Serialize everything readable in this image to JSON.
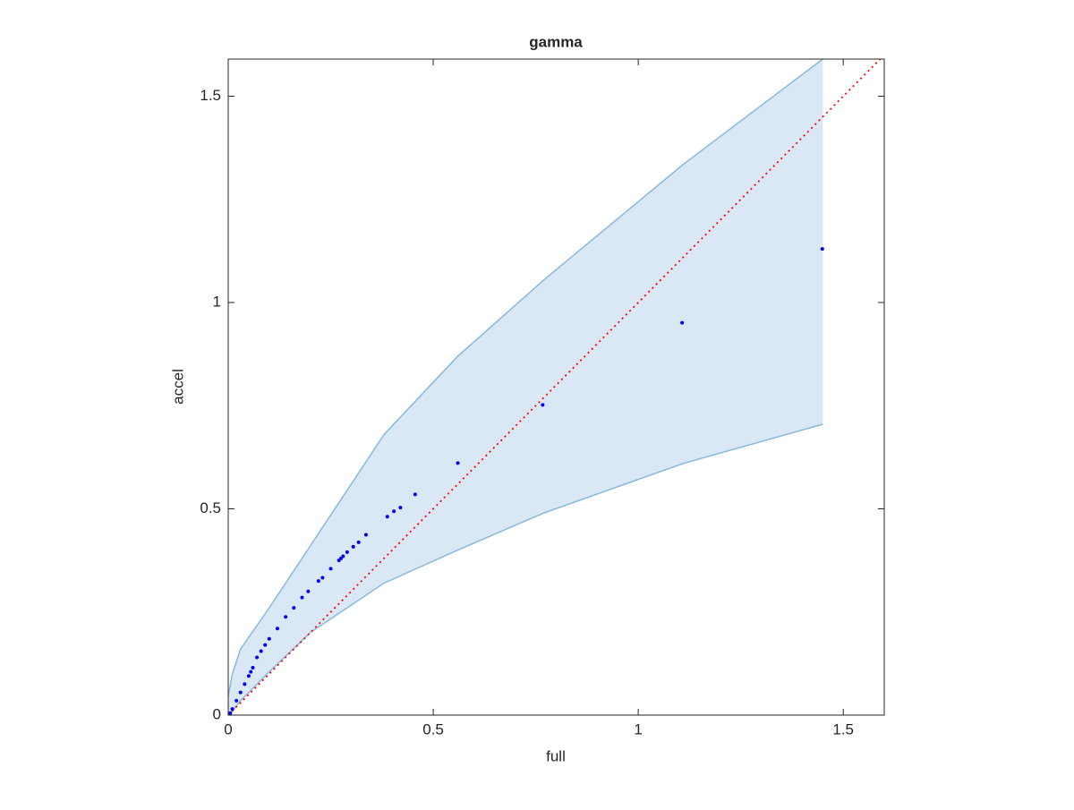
{
  "chart_data": {
    "type": "scatter",
    "title": "gamma",
    "xlabel": "full",
    "ylabel": "accel",
    "xlim": [
      0,
      1.6
    ],
    "ylim": [
      0,
      1.59
    ],
    "xticks": [
      0,
      0.5,
      1,
      1.5
    ],
    "yticks": [
      0,
      0.5,
      1,
      1.5
    ],
    "band": {
      "color": "#d9e8f4",
      "edge_color": "#86b9de",
      "x": [
        0,
        0.01,
        0.03,
        0.1,
        0.2,
        0.38,
        0.56,
        0.77,
        1.11,
        1.45
      ],
      "upper": [
        0.045,
        0.1,
        0.16,
        0.26,
        0.41,
        0.68,
        0.87,
        1.055,
        1.335,
        1.59
      ],
      "lower": [
        0,
        0.01,
        0.035,
        0.105,
        0.2,
        0.32,
        0.4,
        0.49,
        0.61,
        0.705
      ]
    },
    "reference": {
      "color": "#ff0000",
      "style": "dotted",
      "x": [
        0,
        1.6
      ],
      "y": [
        0,
        1.6
      ]
    },
    "series": [
      {
        "color": "#0000ff",
        "x": [
          1.449,
          1.107,
          0.767,
          0.56,
          0.456,
          0.42,
          0.404,
          0.388,
          0.336,
          0.318,
          0.305,
          0.29,
          0.28,
          0.275,
          0.27,
          0.25,
          0.23,
          0.22,
          0.195,
          0.18,
          0.16,
          0.14,
          0.12,
          0.1,
          0.09,
          0.08,
          0.07,
          0.06,
          0.055,
          0.05,
          0.04,
          0.03,
          0.02,
          0.01,
          0.005
        ],
        "values": [
          1.13,
          0.951,
          0.752,
          0.611,
          0.535,
          0.503,
          0.494,
          0.481,
          0.437,
          0.419,
          0.408,
          0.395,
          0.385,
          0.38,
          0.375,
          0.355,
          0.333,
          0.325,
          0.3,
          0.285,
          0.26,
          0.238,
          0.21,
          0.185,
          0.17,
          0.155,
          0.14,
          0.115,
          0.105,
          0.095,
          0.075,
          0.055,
          0.035,
          0.015,
          0.005
        ]
      }
    ]
  }
}
